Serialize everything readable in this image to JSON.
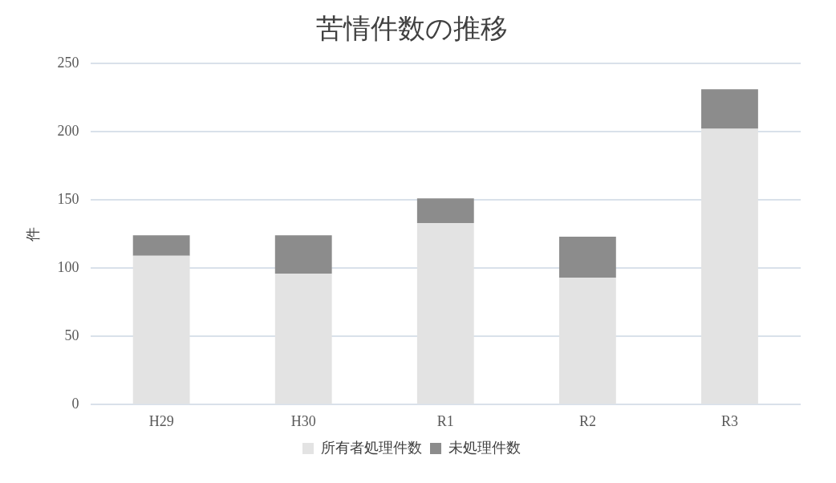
{
  "chart_data": {
    "type": "bar",
    "title": "苦情件数の推移",
    "ylabel": "件",
    "categories": [
      "H29",
      "H30",
      "R1",
      "R2",
      "R3"
    ],
    "stacked": true,
    "series": [
      {
        "name": "所有者処理件数",
        "color": "#e3e3e3",
        "values": [
          109,
          96,
          133,
          93,
          202
        ]
      },
      {
        "name": "未処理件数",
        "color": "#8c8c8c",
        "values": [
          15,
          28,
          18,
          30,
          29
        ]
      }
    ],
    "ylim": [
      0,
      250
    ],
    "yticks": [
      0,
      50,
      100,
      150,
      200,
      250
    ],
    "grid": "y",
    "legend": "bottom"
  }
}
